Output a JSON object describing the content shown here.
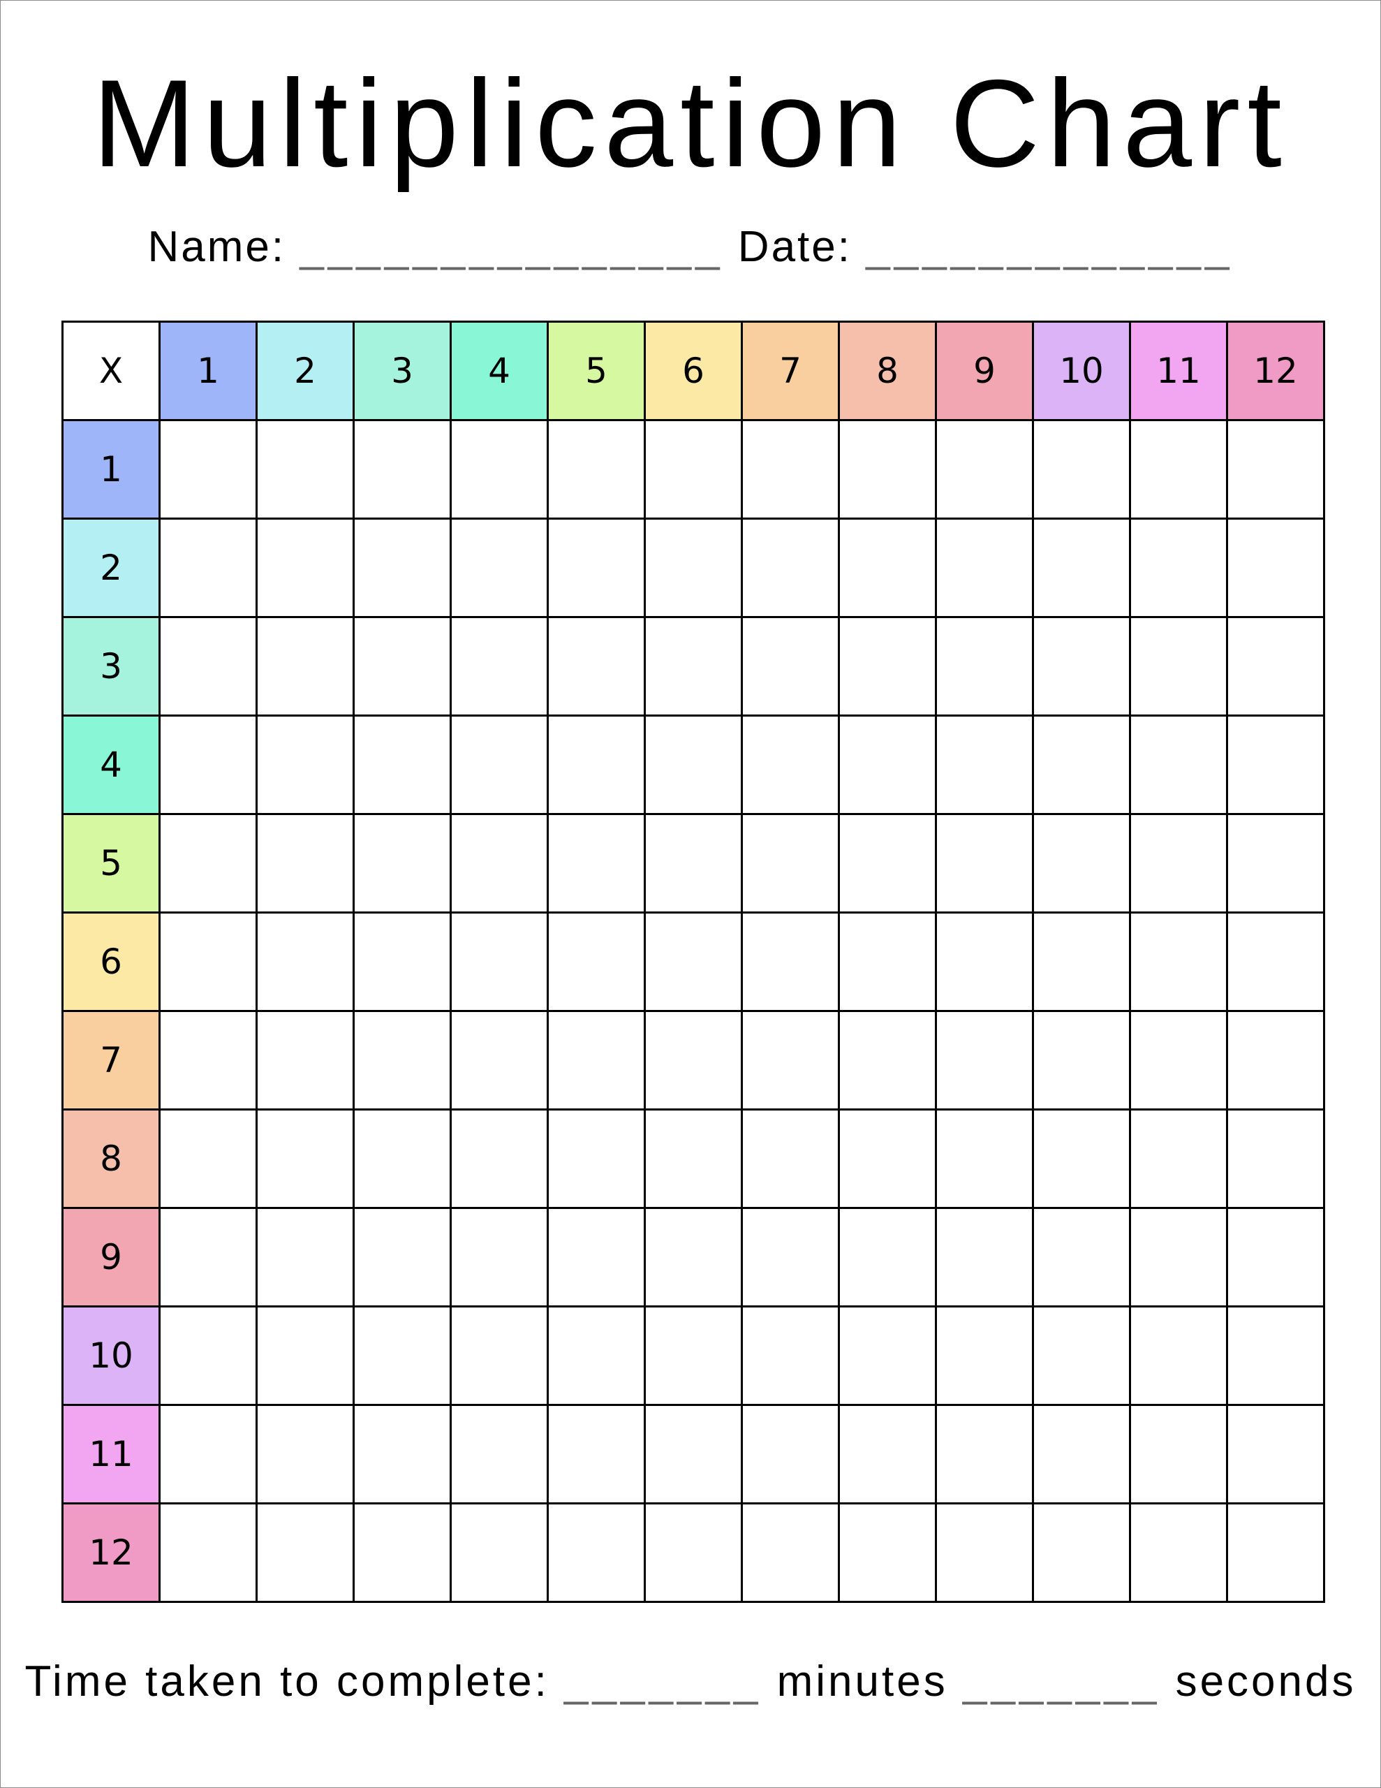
{
  "title": "Multiplication Chart",
  "name_label": "Name:",
  "name_blank": "_______________",
  "date_label": "Date:",
  "date_blank": "_____________",
  "corner_label": "X",
  "numbers": [
    "1",
    "2",
    "3",
    "4",
    "5",
    "6",
    "7",
    "8",
    "9",
    "10",
    "11",
    "12"
  ],
  "colors": [
    "#9fb5fa",
    "#b4eff3",
    "#a5f3dc",
    "#89f6d6",
    "#d5f8a1",
    "#fde9a6",
    "#f9cf9f",
    "#f6bfab",
    "#f2a6b1",
    "#dcb3f7",
    "#f2a5f1",
    "#f09bc6"
  ],
  "time_label": "Time taken to complete:",
  "minutes_blank": "_______",
  "minutes_label": "minutes",
  "seconds_blank": "_______",
  "seconds_label": "seconds"
}
